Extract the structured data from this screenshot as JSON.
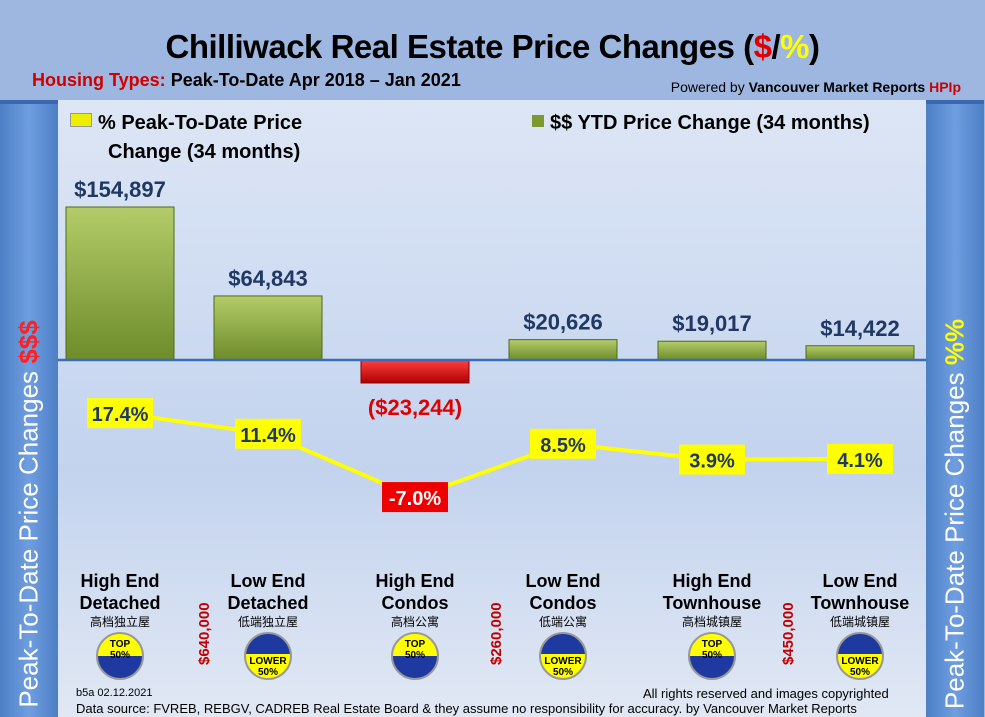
{
  "header": {
    "title_main": "Chilliwack Real Estate Price Changes (",
    "title_dollar": "$",
    "title_slash": "/",
    "title_pct": "%",
    "title_end": ")",
    "subtitle_label": "Housing Types:",
    "subtitle_text": " Peak-To-Date Apr 2018 – Jan 2021",
    "powered_prefix": "Powered by ",
    "powered_brand": "Vancouver Market Reports ",
    "powered_hpi": "HPIp"
  },
  "side": {
    "left_text": "Peak-To-Date Price Changes ",
    "left_accent": "$$$",
    "right_text": "Peak-To-Date  Price  Changes  ",
    "right_accent": "%%"
  },
  "chart_data": {
    "type": "bar+line",
    "categories": [
      "High End Detached",
      "Low End Detached",
      "High End Condos",
      "Low End Condos",
      "High End Townhouse",
      "Low End Townhouse"
    ],
    "categories_line1": [
      "High End",
      "Low End",
      "High End",
      "Low End",
      "High End",
      "Low End"
    ],
    "categories_line2": [
      "Detached",
      "Detached",
      "Condos",
      "Condos",
      "Townhouse",
      "Townhouse"
    ],
    "categories_cn": [
      "高档独立屋",
      "低端独立屋",
      "高档公寓",
      "低端公寓",
      "高档城镇屋",
      "低端城镇屋"
    ],
    "series": [
      {
        "name": "$$ YTD Price Change (34 months)",
        "type": "bar",
        "values": [
          154897,
          64843,
          -23244,
          20626,
          19017,
          14422
        ],
        "labels": [
          "$154,897",
          "$64,843",
          "($23,244)",
          "$20,626",
          "$19,017",
          "$14,422"
        ],
        "color": "#8aaa3c",
        "negative_color": "#e01010"
      },
      {
        "name": "% Peak-To-Date Price Change (34 months)",
        "type": "line",
        "values": [
          17.4,
          11.4,
          -7.0,
          8.5,
          3.9,
          4.1
        ],
        "labels": [
          "17.4%",
          "11.4%",
          "-7.0%",
          "8.5%",
          "3.9%",
          "4.1%"
        ],
        "color": "#ffff00"
      }
    ],
    "legend_pct_line1": "% Peak-To-Date Price",
    "legend_pct_line2": "Change (34 months)",
    "legend_bar": "$$ YTD Price Change (34 months)",
    "badges": [
      {
        "top": "TOP",
        "bottom": "50%",
        "kind": "top"
      },
      {
        "top": "LOWER",
        "bottom": "50%",
        "kind": "lower"
      },
      {
        "top": "TOP",
        "bottom": "50%",
        "kind": "top"
      },
      {
        "top": "LOWER",
        "bottom": "50%",
        "kind": "lower"
      },
      {
        "top": "TOP",
        "bottom": "50%",
        "kind": "top"
      },
      {
        "top": "LOWER",
        "bottom": "50%",
        "kind": "lower"
      }
    ],
    "price_thresholds": [
      "$640,000",
      "$260,000",
      "$450,000"
    ]
  },
  "footer": {
    "version": "b5a 02.12.2021",
    "rights": "All rights reserved and  images copyrighted",
    "source": "Data source: FVREB, REBGV, CADREB Real Estate Board & they assume no responsibility for accuracy. by Vancouver Market Reports"
  }
}
